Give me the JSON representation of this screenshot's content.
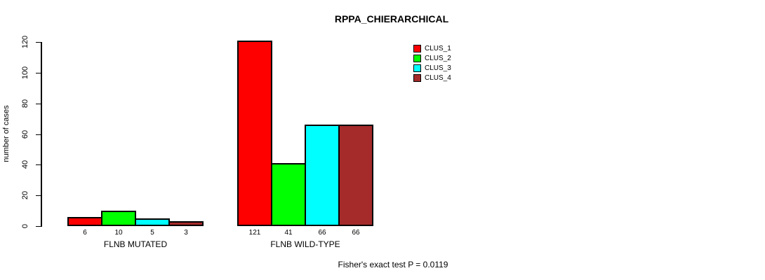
{
  "chart_data": {
    "type": "bar",
    "title": "RPPA_CHIERARCHICAL",
    "xlabel": "",
    "ylabel": "number of cases",
    "ylim": [
      0,
      120
    ],
    "yticks": [
      0,
      20,
      40,
      60,
      80,
      100,
      120
    ],
    "categories": [
      "FLNB MUTATED",
      "FLNB WILD-TYPE"
    ],
    "series": [
      {
        "name": "CLUS_1",
        "color": "#FF0000",
        "values": [
          6,
          121
        ]
      },
      {
        "name": "CLUS_2",
        "color": "#00FF00",
        "values": [
          10,
          41
        ]
      },
      {
        "name": "CLUS_3",
        "color": "#00FFFF",
        "values": [
          5,
          66
        ]
      },
      {
        "name": "CLUS_4",
        "color": "#A52A2A",
        "values": [
          3,
          66
        ]
      }
    ],
    "bar_value_labels": true,
    "grid": false,
    "legend_position": "top-right",
    "annotation": "Fisher's exact test P = 0.0119"
  }
}
